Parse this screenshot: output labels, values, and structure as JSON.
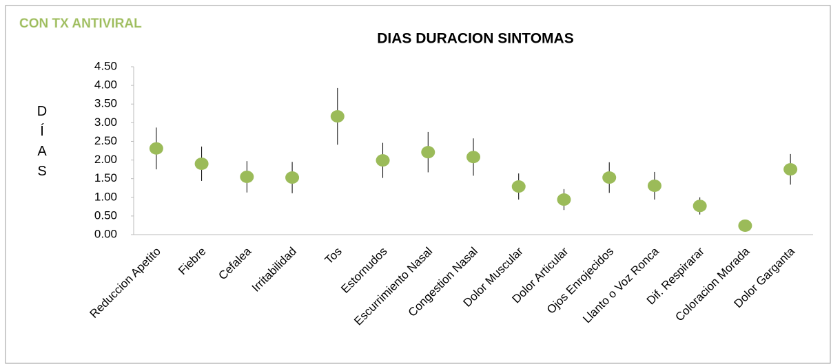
{
  "chart_data": {
    "type": "scatter",
    "tag": "CON TX ANTIVIRAL",
    "title": "DIAS DURACION SINTOMAS",
    "y_label": "DÍAS",
    "categories": [
      "Reduccion Apetito",
      "Fiebre",
      "Cefalea",
      "Irritabilidad",
      "Tos",
      "Estornudos",
      "Escurrimiento Nasal",
      "Congestion Nasal",
      "Dolor Muscular",
      "Dolor Articular",
      "Ojos Enrojecidos",
      "Llanto o Voz Ronca",
      "Dif. Respirarar",
      "Coloracion Morada",
      "Dolor Garganta"
    ],
    "values": [
      2.31,
      1.9,
      1.55,
      1.53,
      3.17,
      1.99,
      2.21,
      2.08,
      1.29,
      0.94,
      1.53,
      1.31,
      0.77,
      0.24,
      1.75
    ],
    "errors": [
      0.56,
      0.46,
      0.42,
      0.42,
      0.76,
      0.47,
      0.54,
      0.5,
      0.35,
      0.28,
      0.41,
      0.37,
      0.23,
      0,
      0.41
    ],
    "color": "#9bbb59",
    "ylim": [
      0,
      4.5
    ],
    "yticks": [
      {
        "value": 0,
        "label": "0.00"
      },
      {
        "value": 0.5,
        "label": "0.50"
      },
      {
        "value": 1,
        "label": "1.00"
      },
      {
        "value": 1.5,
        "label": "1.50"
      },
      {
        "value": 2,
        "label": "2.00"
      },
      {
        "value": 2.5,
        "label": "2.50"
      },
      {
        "value": 3,
        "label": "3.00"
      },
      {
        "value": 3.5,
        "label": "3.50"
      },
      {
        "value": 4,
        "label": "4.00"
      },
      {
        "value": 4.5,
        "label": "4.50"
      }
    ],
    "grid": false
  }
}
